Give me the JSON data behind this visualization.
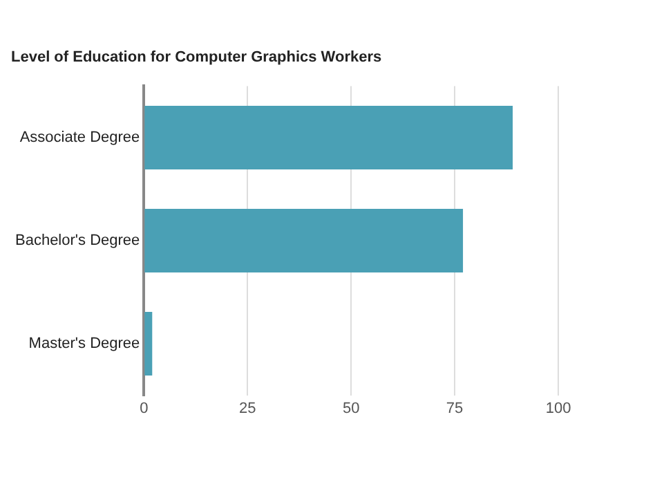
{
  "chart_data": {
    "type": "bar",
    "orientation": "horizontal",
    "title": "Level of Education for Computer Graphics Workers",
    "categories": [
      "Associate Degree",
      "Bachelor's Degree",
      "Master's Degree"
    ],
    "values": [
      89,
      77,
      2
    ],
    "color": "#4aa0b5",
    "xlim": [
      0,
      100
    ],
    "xticks": [
      0,
      25,
      50,
      75,
      100
    ],
    "grid": "x"
  }
}
